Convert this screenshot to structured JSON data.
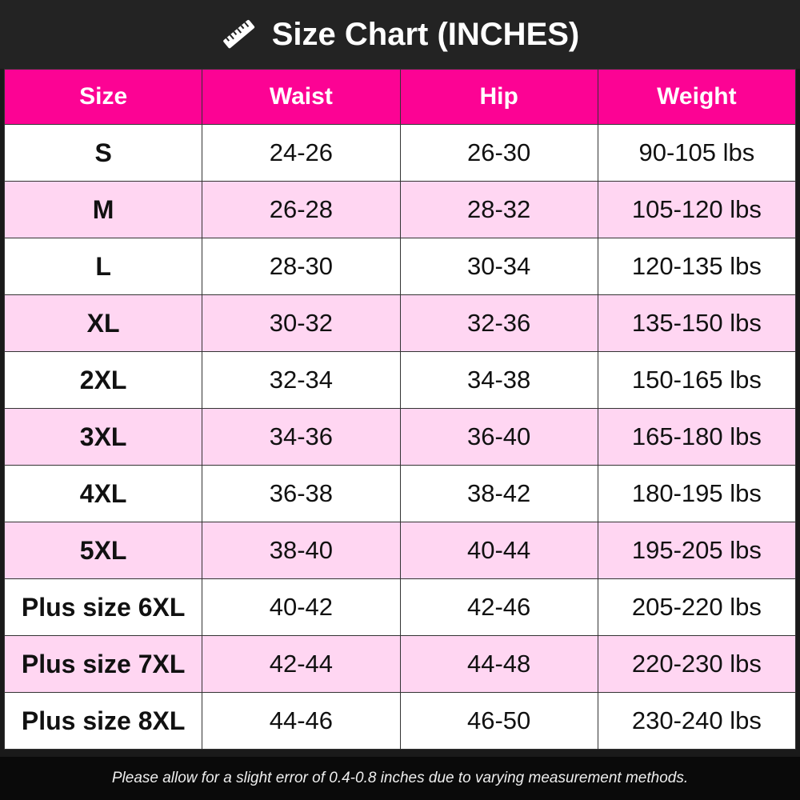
{
  "title": "Size Chart (INCHES)",
  "title_icon": "ruler-icon",
  "colors": {
    "header": "#fc0394",
    "alt_row": "#ffd6f2",
    "title_bar": "#232323"
  },
  "columns": [
    "Size",
    "Waist",
    "Hip",
    "Weight"
  ],
  "rows": [
    [
      "S",
      "24-26",
      "26-30",
      "90-105 lbs"
    ],
    [
      "M",
      "26-28",
      "28-32",
      "105-120 lbs"
    ],
    [
      "L",
      "28-30",
      "30-34",
      "120-135 lbs"
    ],
    [
      "XL",
      "30-32",
      "32-36",
      "135-150 lbs"
    ],
    [
      "2XL",
      "32-34",
      "34-38",
      "150-165 lbs"
    ],
    [
      "3XL",
      "34-36",
      "36-40",
      "165-180 lbs"
    ],
    [
      "4XL",
      "36-38",
      "38-42",
      "180-195 lbs"
    ],
    [
      "5XL",
      "38-40",
      "40-44",
      "195-205 lbs"
    ],
    [
      "Plus size 6XL",
      "40-42",
      "42-46",
      "205-220 lbs"
    ],
    [
      "Plus size 7XL",
      "42-44",
      "44-48",
      "220-230 lbs"
    ],
    [
      "Plus size 8XL",
      "44-46",
      "46-50",
      "230-240 lbs"
    ]
  ],
  "footer": "Please allow for a slight error of 0.4-0.8 inches due to varying measurement methods."
}
